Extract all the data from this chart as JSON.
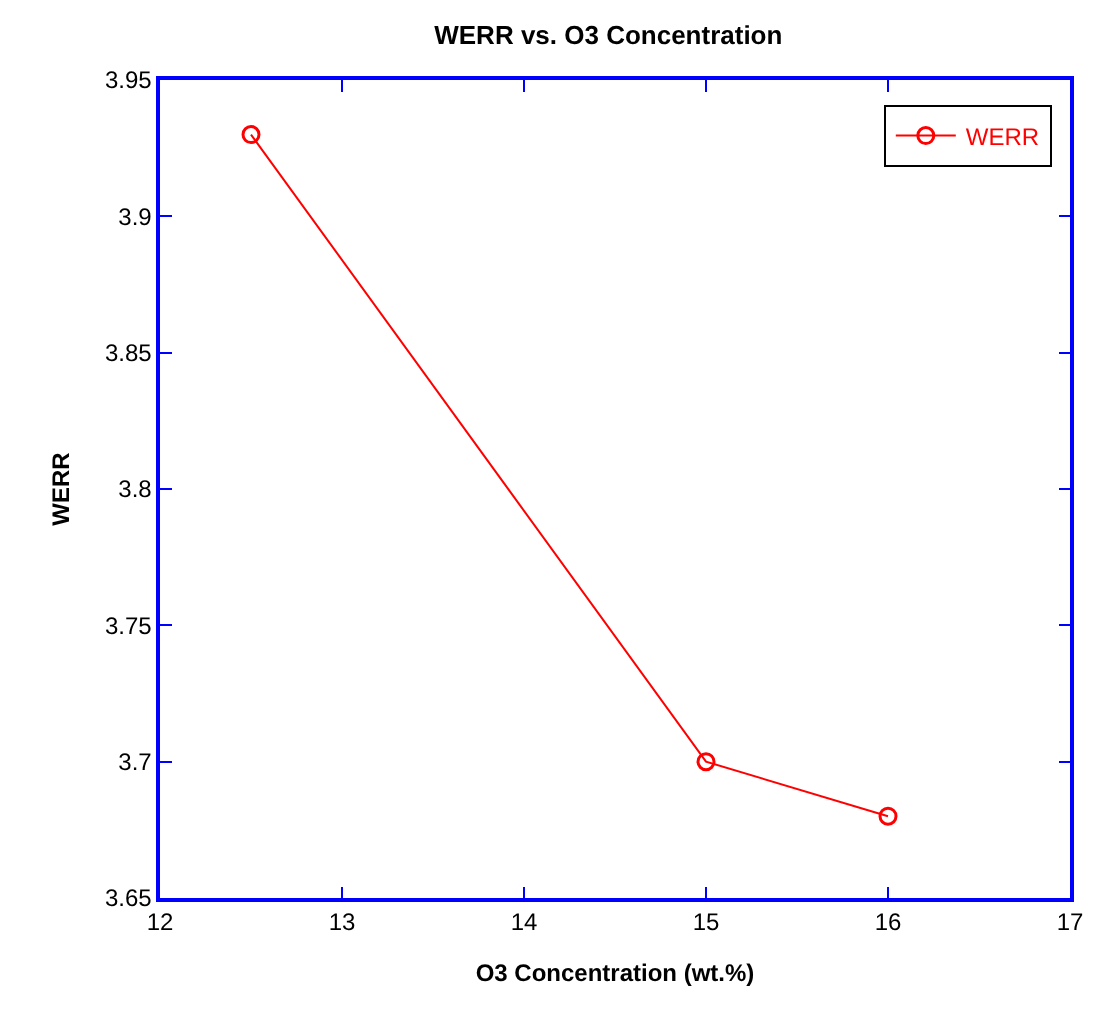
{
  "chart_data": {
    "type": "line",
    "title": "WERR vs. O3 Concentration",
    "xlabel": "O3 Concentration (wt.%)",
    "ylabel": "WERR",
    "x": [
      12.5,
      15,
      16
    ],
    "series": [
      {
        "name": "WERR",
        "color": "#ff0000",
        "values": [
          3.93,
          3.7,
          3.68
        ]
      }
    ],
    "xlim": [
      12,
      17
    ],
    "xticks": [
      12,
      13,
      14,
      15,
      16,
      17
    ],
    "ylim": [
      3.65,
      3.95
    ],
    "yticks": [
      3.65,
      3.7,
      3.75,
      3.8,
      3.85,
      3.9,
      3.95
    ],
    "marker": "circle",
    "line_style": "solid",
    "legend": "top right"
  }
}
